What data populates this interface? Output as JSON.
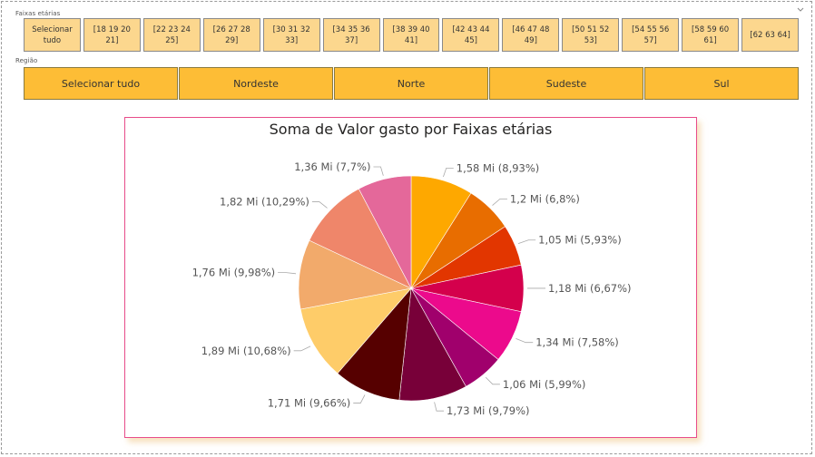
{
  "slicers": {
    "age": {
      "title": "Faixas etárias",
      "tiles": [
        "Selecionar\ntudo",
        "[18 19 20\n21]",
        "[22 23 24\n25]",
        "[26 27 28\n29]",
        "[30 31 32\n33]",
        "[34 35 36\n37]",
        "[38 39 40\n41]",
        "[42 43 44\n45]",
        "[46 47 48\n49]",
        "[50 51 52\n53]",
        "[54 55 56\n57]",
        "[58 59 60\n61]",
        "[62 63 64]"
      ]
    },
    "region": {
      "title": "Região",
      "tiles": [
        "Selecionar tudo",
        "Nordeste",
        "Norte",
        "Sudeste",
        "Sul"
      ]
    }
  },
  "chart_data": {
    "type": "pie",
    "title": "Soma de Valor gasto por Faixas etárias",
    "slices": [
      {
        "label": "1,58 Mi (8,93%)",
        "value": 8.93,
        "color": "#fea800"
      },
      {
        "label": "1,2 Mi (6,8%)",
        "value": 6.8,
        "color": "#e86d00"
      },
      {
        "label": "1,05 Mi (5,93%)",
        "value": 5.93,
        "color": "#e23600"
      },
      {
        "label": "1,18 Mi (6,67%)",
        "value": 6.67,
        "color": "#d4004c"
      },
      {
        "label": "1,34 Mi (7,58%)",
        "value": 7.58,
        "color": "#ec0a8c"
      },
      {
        "label": "1,06 Mi (5,99%)",
        "value": 5.99,
        "color": "#a0006c"
      },
      {
        "label": "1,73 Mi (9,79%)",
        "value": 9.79,
        "color": "#780039"
      },
      {
        "label": "1,71 Mi (9,66%)",
        "value": 9.66,
        "color": "#560000"
      },
      {
        "label": "1,89 Mi (10,68%)",
        "value": 10.68,
        "color": "#fecc69"
      },
      {
        "label": "1,76 Mi (9,98%)",
        "value": 9.98,
        "color": "#f2aa6b"
      },
      {
        "label": "1,82 Mi (10,29%)",
        "value": 10.29,
        "color": "#ef866a"
      },
      {
        "label": "1,36 Mi (7,7%)",
        "value": 7.7,
        "color": "#e4689a"
      }
    ]
  }
}
